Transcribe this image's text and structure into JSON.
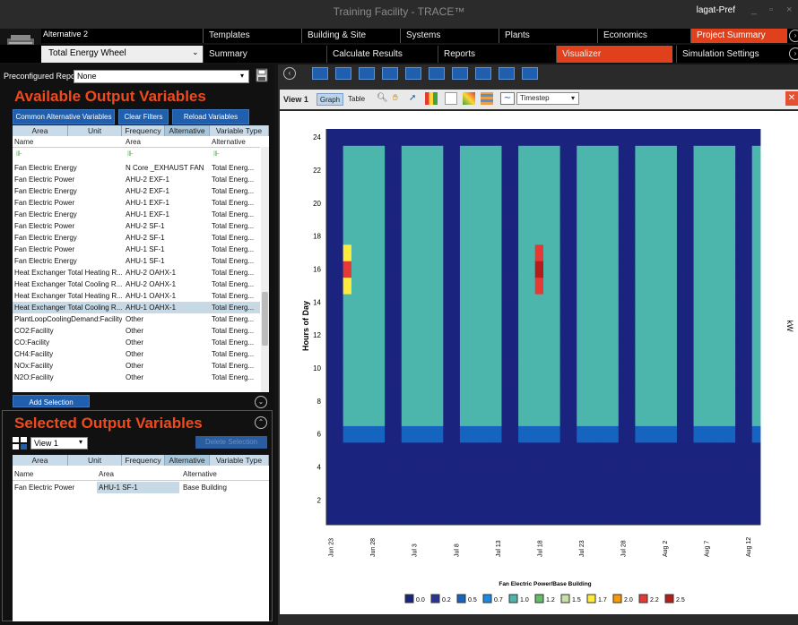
{
  "window": {
    "title": "Training Facility - TRACE™",
    "user": "lagat-Pref",
    "min": "_",
    "max": "▫",
    "close": "×"
  },
  "alternative_label": "Alternative 2",
  "nav_top": [
    {
      "label": "Templates"
    },
    {
      "label": "Building & Site"
    },
    {
      "label": "Systems"
    },
    {
      "label": "Plants"
    },
    {
      "label": "Economics"
    },
    {
      "label": "Project Summary"
    }
  ],
  "alt_select": "Total Energy Wheel",
  "nav_sub": [
    {
      "label": "Summary"
    },
    {
      "label": "Calculate Results"
    },
    {
      "label": "Reports"
    },
    {
      "label": "Visualizer"
    },
    {
      "label": "Simulation Settings"
    }
  ],
  "preconfigured": {
    "label": "Preconfigured Reports",
    "value": "None"
  },
  "available": {
    "title": "Available Output Variables",
    "buttons": {
      "common": "Common Alternative Variables",
      "clear": "Clear Filters",
      "reload": "Reload Variables"
    },
    "group_tabs": [
      "Area",
      "Unit",
      "Frequency",
      "Alternative",
      "Variable Type"
    ],
    "columns": [
      "Name",
      "Area",
      "Alternative"
    ],
    "rows": [
      [
        "Fan Electric Energy",
        "N Core _EXHAUST FAN",
        "Total Energ..."
      ],
      [
        "Fan Electric Power",
        "AHU-2 EXF-1",
        "Total Energ..."
      ],
      [
        "Fan Electric Energy",
        "AHU-2 EXF-1",
        "Total Energ..."
      ],
      [
        "Fan Electric Power",
        "AHU-1 EXF-1",
        "Total Energ..."
      ],
      [
        "Fan Electric Energy",
        "AHU-1 EXF-1",
        "Total Energ..."
      ],
      [
        "Fan Electric Power",
        "AHU-2 SF-1",
        "Total Energ..."
      ],
      [
        "Fan Electric Energy",
        "AHU-2 SF-1",
        "Total Energ..."
      ],
      [
        "Fan Electric Power",
        "AHU-1 SF-1",
        "Total Energ..."
      ],
      [
        "Fan Electric Energy",
        "AHU-1 SF-1",
        "Total Energ..."
      ],
      [
        "Heat Exchanger Total Heating R...",
        "AHU-2 OAHX-1",
        "Total Energ..."
      ],
      [
        "Heat Exchanger Total Cooling R...",
        "AHU-2 OAHX-1",
        "Total Energ..."
      ],
      [
        "Heat Exchanger Total Heating R...",
        "AHU-1 OAHX-1",
        "Total Energ..."
      ],
      [
        "Heat Exchanger Total Cooling R...",
        "AHU-1 OAHX-1",
        "Total Energ..."
      ],
      [
        "PlantLoopCoolingDemand:Facility",
        "Other",
        "Total Energ..."
      ],
      [
        "CO2:Facility",
        "Other",
        "Total Energ..."
      ],
      [
        "CO:Facility",
        "Other",
        "Total Energ..."
      ],
      [
        "CH4:Facility",
        "Other",
        "Total Energ..."
      ],
      [
        "NOx:Facility",
        "Other",
        "Total Energ..."
      ],
      [
        "N2O:Facility",
        "Other",
        "Total Energ..."
      ]
    ],
    "add_button": "Add Selection"
  },
  "selected": {
    "title": "Selected Output Variables",
    "view": "View 1",
    "delete_button": "Delete Selection",
    "group_tabs": [
      "Area",
      "Unit",
      "Frequency",
      "Alternative",
      "Variable Type"
    ],
    "columns": [
      "Name",
      "Area",
      "Alternative"
    ],
    "rows": [
      [
        "Fan Electric Power",
        "AHU-1 SF-1",
        "Base Building"
      ]
    ]
  },
  "viewer": {
    "view_label": "View 1",
    "graph": "Graph",
    "table": "Table",
    "timestep": "Timestep"
  },
  "chart_data": {
    "type": "heatmap",
    "title": "",
    "xlabel": "Fan Electric Power/Base Building",
    "ylabel": "Hours of Day",
    "zlabel": "kW",
    "yticks": [
      "2",
      "4",
      "6",
      "8",
      "10",
      "12",
      "14",
      "16",
      "18",
      "20",
      "22",
      "24"
    ],
    "ylim": [
      1,
      24
    ],
    "xticks": [
      "Jun 23",
      "Jun 28",
      "Jul 3",
      "Jul 8",
      "Jul 13",
      "Jul 18",
      "Jul 23",
      "Jul 28",
      "Aug 2",
      "Aug 7",
      "Aug 12"
    ],
    "legend": [
      "0.0",
      "0.2",
      "0.5",
      "0.7",
      "1.0",
      "1.2",
      "1.5",
      "1.7",
      "2.0",
      "2.2",
      "2.5"
    ],
    "colors": [
      "#1a237e",
      "#283593",
      "#1565c0",
      "#1e88e5",
      "#4db6ac",
      "#66bb6a",
      "#c5e1a5",
      "#ffeb3b",
      "#ff9800",
      "#e53935",
      "#b71c1c"
    ],
    "occupied_kw": 1.0,
    "unoccupied_kw": 0.0,
    "peaks": [
      {
        "date": "Jun 25",
        "hour": 16,
        "kw": 2.2
      },
      {
        "date": "Jul 18",
        "hour": 16,
        "kw": 2.5
      }
    ]
  }
}
